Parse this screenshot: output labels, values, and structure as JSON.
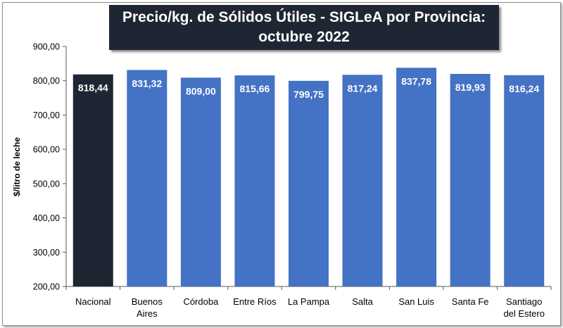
{
  "chart_data": {
    "type": "bar",
    "title_line1": "Precio/kg. de Sólidos Útiles - SIGLeA por Provincia:",
    "title_line2": "octubre 2022",
    "ylabel": "$/litro de leche",
    "ylim": [
      200,
      900
    ],
    "yticks": [
      200,
      300,
      400,
      500,
      600,
      700,
      800,
      900
    ],
    "ytick_labels": [
      "200,00",
      "300,00",
      "400,00",
      "500,00",
      "600,00",
      "700,00",
      "800,00",
      "900,00"
    ],
    "categories": [
      [
        "Nacional"
      ],
      [
        "Buenos",
        "Aires"
      ],
      [
        "Córdoba"
      ],
      [
        "Entre Ríos"
      ],
      [
        "La Pampa"
      ],
      [
        "Salta"
      ],
      [
        "San Luis"
      ],
      [
        "Santa Fe"
      ],
      [
        "Santiago",
        "del Estero"
      ]
    ],
    "values": [
      818.44,
      831.32,
      809.0,
      815.66,
      799.75,
      817.24,
      837.78,
      819.93,
      816.24
    ],
    "value_labels": [
      "818,44",
      "831,32",
      "809,00",
      "815,66",
      "799,75",
      "817,24",
      "837,78",
      "819,93",
      "816,24"
    ],
    "bar_colors": [
      "#1f2633",
      "#4472c4",
      "#4472c4",
      "#4472c4",
      "#4472c4",
      "#4472c4",
      "#4472c4",
      "#4472c4",
      "#4472c4"
    ],
    "grid": false,
    "legend": "none"
  }
}
